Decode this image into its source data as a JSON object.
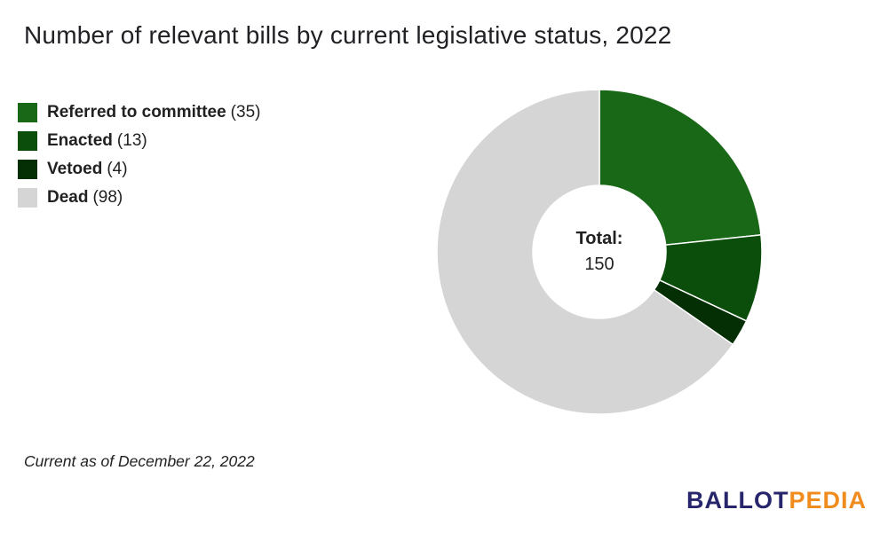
{
  "title": "Number of relevant bills by current legislative status, 2022",
  "legend": {
    "items": [
      {
        "label": "Referred to committee",
        "count": "(35)"
      },
      {
        "label": "Enacted",
        "count": "(13)"
      },
      {
        "label": "Vetoed",
        "count": "(4)"
      },
      {
        "label": "Dead",
        "count": "(98)"
      }
    ]
  },
  "center": {
    "label": "Total:",
    "value": "150"
  },
  "footer": {
    "note": "Current as of December 22, 2022"
  },
  "logo": {
    "part1": "BALLOT",
    "part2": "PEDIA",
    "blue": "#27256b",
    "orange": "#f08c1e"
  },
  "chart_data": {
    "type": "pie",
    "subtype": "donut",
    "title": "Number of relevant bills by current legislative status, 2022",
    "categories": [
      "Referred to committee",
      "Enacted",
      "Vetoed",
      "Dead"
    ],
    "values": [
      35,
      13,
      4,
      98
    ],
    "total": 150,
    "colors": [
      "#186818",
      "#0b4d0b",
      "#042e04",
      "#d5d5d5"
    ],
    "center_label": "Total:",
    "center_value": "150",
    "legend_position": "left",
    "start_angle_deg": 0,
    "direction": "clockwise",
    "inner_radius_ratio": 0.41,
    "annotation": "Current as of December 22, 2022"
  }
}
